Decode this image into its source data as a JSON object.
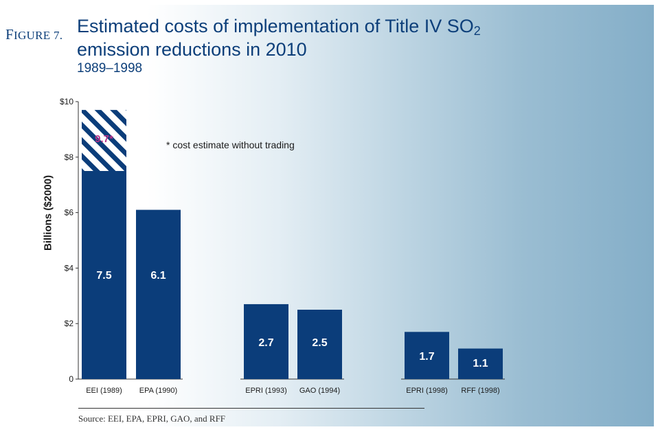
{
  "figure": {
    "label_first": "F",
    "label_rest": "IGURE",
    "label_num": "7.",
    "title_main": "Estimated costs of implementation of Title IV SO",
    "title_sub": "2",
    "title_line2": "emission reductions in 2010",
    "years": "1989–1998",
    "source": "Source: EEI, EPA, EPRI, GAO, and RFF"
  },
  "chart_data": {
    "type": "bar",
    "ylabel": "Billions ($2000)",
    "ylim": [
      0,
      10
    ],
    "yticks": [
      {
        "value": 0,
        "label": "0"
      },
      {
        "value": 2,
        "label": "$2"
      },
      {
        "value": 4,
        "label": "$4"
      },
      {
        "value": 6,
        "label": "$6"
      },
      {
        "value": 8,
        "label": "$8"
      },
      {
        "value": 10,
        "label": "$10"
      }
    ],
    "categories": [
      "EEI (1989)",
      "EPA (1990)",
      "EPRI (1993)",
      "GAO (1994)",
      "EPRI (1998)",
      "RFF (1998)"
    ],
    "values": [
      7.5,
      6.1,
      2.7,
      2.5,
      1.7,
      1.1
    ],
    "value_labels": [
      "7.5",
      "6.1",
      "2.7",
      "2.5",
      "1.7",
      "1.1"
    ],
    "groups": [
      [
        0,
        1
      ],
      [
        2,
        3
      ],
      [
        4,
        5
      ]
    ],
    "without_trading": {
      "category": "EEI (1989)",
      "value": 9.7,
      "label": "9.7*"
    },
    "annotation": "* cost estimate without trading",
    "colors": {
      "bar": "#0b3d7a",
      "hatch": "#0b3d7a",
      "highlight_label": "#b5338a"
    },
    "grid": false
  }
}
